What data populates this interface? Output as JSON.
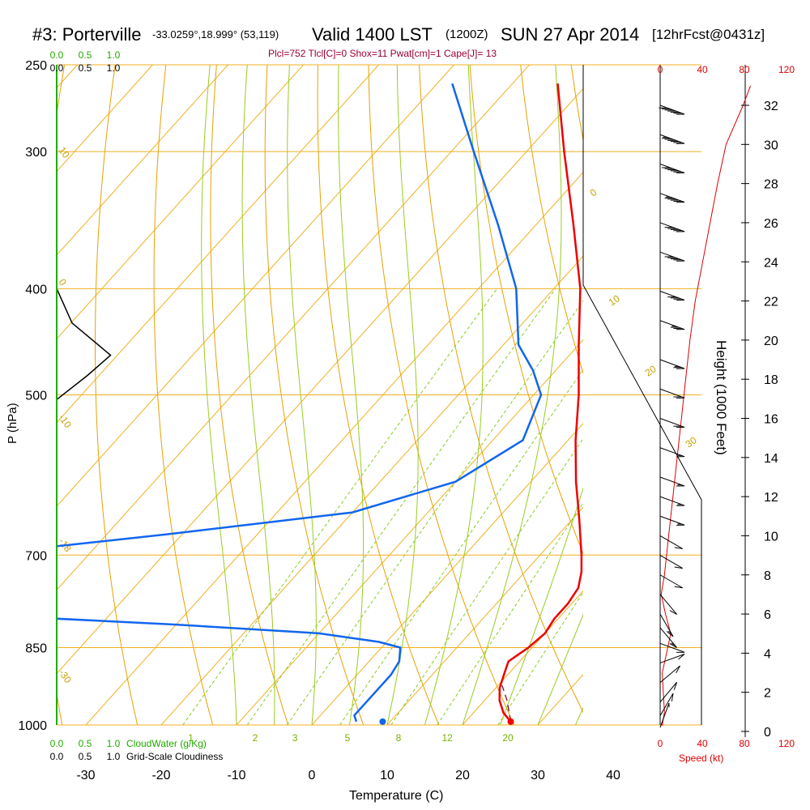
{
  "title": {
    "station": "#3: Porterville",
    "coords": "-33.0259°,18.999° (53,119)",
    "valid": "Valid 1400 LST",
    "utc": "(1200Z)",
    "date": "SUN 27 Apr 2014",
    "forecast": "[12hrFcst@0431z]"
  },
  "indices": "Plcl=752 Tlcl[C]=0 Shox=11 Pwat[cm]=1 Cape[J]= 13",
  "colors": {
    "isotherm": "#f0b020",
    "dry_adiabat": "#e8a000",
    "moist_adiabat": "#99cc22",
    "mixing_ratio": "#88cc22",
    "temperature": "#ee0000",
    "dewpoint": "#1166ee",
    "cloud": "#000000",
    "speed_axis": "#dd0000"
  },
  "chart_data": {
    "type": "skew-t",
    "xlabel": "Temperature (C)",
    "ylabel": "P (hPa)",
    "right_ylabel": "Height (1000 Feet)",
    "x_ticks": [
      -30,
      -20,
      -10,
      0,
      10,
      20,
      30,
      40
    ],
    "p_ticks": [
      250,
      300,
      400,
      500,
      700,
      850,
      1000
    ],
    "height_ticks": [
      0,
      2,
      4,
      6,
      8,
      10,
      12,
      14,
      16,
      18,
      20,
      22,
      24,
      26,
      28,
      30,
      32
    ],
    "speed_ticks": [
      0,
      40,
      80,
      120
    ],
    "speed_label": "Speed (kt)",
    "cloudwater_ticks": [
      "0.0",
      "0.5",
      "1.0"
    ],
    "cloudwater_label": "CloudWater (g/Kg)",
    "cloudiness_ticks": [
      "0.0",
      "0.5",
      "1.0"
    ],
    "cloudiness_label": "Grid-Scale Cloudiness",
    "mixing_ratio_labels": [
      "1",
      "2",
      "3",
      "5",
      "8",
      "12",
      "20"
    ],
    "moist_adiabat_labels": [
      "0",
      "10",
      "20",
      "30"
    ],
    "dry_adiabat_labels": [
      "10",
      "0",
      "-10",
      "-18",
      "-30"
    ],
    "temperature": [
      {
        "p": 993,
        "t": 26.0
      },
      {
        "p": 975,
        "t": 24.0
      },
      {
        "p": 950,
        "t": 22.0
      },
      {
        "p": 925,
        "t": 20.5
      },
      {
        "p": 900,
        "t": 19.5
      },
      {
        "p": 875,
        "t": 18.5
      },
      {
        "p": 850,
        "t": 19.5
      },
      {
        "p": 825,
        "t": 20.0
      },
      {
        "p": 800,
        "t": 19.5
      },
      {
        "p": 775,
        "t": 19.5
      },
      {
        "p": 750,
        "t": 19.0
      },
      {
        "p": 725,
        "t": 17.5
      },
      {
        "p": 700,
        "t": 15.5
      },
      {
        "p": 650,
        "t": 11.0
      },
      {
        "p": 600,
        "t": 6.0
      },
      {
        "p": 550,
        "t": 1.0
      },
      {
        "p": 500,
        "t": -4.0
      },
      {
        "p": 450,
        "t": -10.0
      },
      {
        "p": 400,
        "t": -16.5
      },
      {
        "p": 350,
        "t": -25.0
      },
      {
        "p": 300,
        "t": -35.0
      },
      {
        "p": 260,
        "t": -44.0
      }
    ],
    "dewpoint": [
      {
        "p": 993,
        "t": 5.5
      },
      {
        "p": 980,
        "t": 4.5
      },
      {
        "p": 950,
        "t": 4.5
      },
      {
        "p": 900,
        "t": 4.5
      },
      {
        "p": 875,
        "t": 4.0
      },
      {
        "p": 850,
        "t": 2.5
      },
      {
        "p": 840,
        "t": -1.0
      },
      {
        "p": 825,
        "t": -10.0
      },
      {
        "p": 810,
        "t": -30.0
      },
      {
        "p": 795,
        "t": -55.0
      },
      {
        "p": 700,
        "t": -65.0
      },
      {
        "p": 670,
        "t": -42.0
      },
      {
        "p": 640,
        "t": -20.0
      },
      {
        "p": 600,
        "t": -10.0
      },
      {
        "p": 550,
        "t": -6.0
      },
      {
        "p": 500,
        "t": -9.0
      },
      {
        "p": 475,
        "t": -13.0
      },
      {
        "p": 450,
        "t": -18.0
      },
      {
        "p": 400,
        "t": -25.0
      },
      {
        "p": 350,
        "t": -35.0
      },
      {
        "p": 300,
        "t": -47.0
      },
      {
        "p": 260,
        "t": -58.0
      }
    ],
    "parcel_trace": [
      {
        "p": 993,
        "t": 26.0
      },
      {
        "p": 950,
        "t": 23.0
      },
      {
        "p": 920,
        "t": 20.5
      }
    ],
    "surface_dewpoint_marker": {
      "p": 993,
      "t": 9.0
    },
    "surface_temperature_marker": {
      "p": 993,
      "t": 26.0
    },
    "cloud_profile": [
      {
        "p": 400,
        "c": 0.0
      },
      {
        "p": 430,
        "c": 0.2
      },
      {
        "p": 460,
        "c": 0.7
      },
      {
        "p": 480,
        "c": 0.4
      },
      {
        "p": 505,
        "c": 0.0
      }
    ],
    "wind_speed_profile": [
      {
        "h": 0.3,
        "kt": 2
      },
      {
        "h": 1.0,
        "kt": 4
      },
      {
        "h": 2.0,
        "kt": 3
      },
      {
        "h": 3.0,
        "kt": 2
      },
      {
        "h": 4.0,
        "kt": 6
      },
      {
        "h": 5.0,
        "kt": 10
      },
      {
        "h": 6.0,
        "kt": 5
      },
      {
        "h": 7.0,
        "kt": 1
      },
      {
        "h": 8.0,
        "kt": 4
      },
      {
        "h": 10.0,
        "kt": 8
      },
      {
        "h": 12.0,
        "kt": 12
      },
      {
        "h": 14.0,
        "kt": 16
      },
      {
        "h": 16.0,
        "kt": 20
      },
      {
        "h": 18.0,
        "kt": 24
      },
      {
        "h": 20.0,
        "kt": 28
      },
      {
        "h": 22.0,
        "kt": 33
      },
      {
        "h": 24.0,
        "kt": 40
      },
      {
        "h": 26.0,
        "kt": 47
      },
      {
        "h": 28.0,
        "kt": 54
      },
      {
        "h": 30.0,
        "kt": 62
      },
      {
        "h": 32.0,
        "kt": 78
      },
      {
        "h": 33.0,
        "kt": 85
      }
    ],
    "wind_barbs": [
      {
        "h": 0.2,
        "dir": 200,
        "kt": 5
      },
      {
        "h": 0.8,
        "dir": 210,
        "kt": 10
      },
      {
        "h": 1.5,
        "dir": 220,
        "kt": 10
      },
      {
        "h": 2.5,
        "dir": 230,
        "kt": 10
      },
      {
        "h": 3.5,
        "dir": 250,
        "kt": 10
      },
      {
        "h": 4.5,
        "dir": 290,
        "kt": 10
      },
      {
        "h": 5.3,
        "dir": 320,
        "kt": 15
      },
      {
        "h": 6.0,
        "dir": 330,
        "kt": 15
      },
      {
        "h": 7.0,
        "dir": 320,
        "kt": 10
      },
      {
        "h": 8.0,
        "dir": 300,
        "kt": 10
      },
      {
        "h": 9.0,
        "dir": 300,
        "kt": 10
      },
      {
        "h": 10.0,
        "dir": 300,
        "kt": 10
      },
      {
        "h": 11.0,
        "dir": 290,
        "kt": 15
      },
      {
        "h": 12.0,
        "dir": 290,
        "kt": 15
      },
      {
        "h": 13.0,
        "dir": 290,
        "kt": 15
      },
      {
        "h": 14.5,
        "dir": 290,
        "kt": 15
      },
      {
        "h": 16.0,
        "dir": 290,
        "kt": 20
      },
      {
        "h": 17.5,
        "dir": 290,
        "kt": 20
      },
      {
        "h": 19.0,
        "dir": 290,
        "kt": 25
      },
      {
        "h": 21.0,
        "dir": 290,
        "kt": 35
      },
      {
        "h": 22.5,
        "dir": 290,
        "kt": 40
      },
      {
        "h": 24.5,
        "dir": 290,
        "kt": 50
      },
      {
        "h": 26.0,
        "dir": 290,
        "kt": 50
      },
      {
        "h": 27.5,
        "dir": 290,
        "kt": 55
      },
      {
        "h": 29.0,
        "dir": 290,
        "kt": 60
      },
      {
        "h": 30.5,
        "dir": 290,
        "kt": 65
      },
      {
        "h": 32.0,
        "dir": 290,
        "kt": 70
      }
    ]
  }
}
